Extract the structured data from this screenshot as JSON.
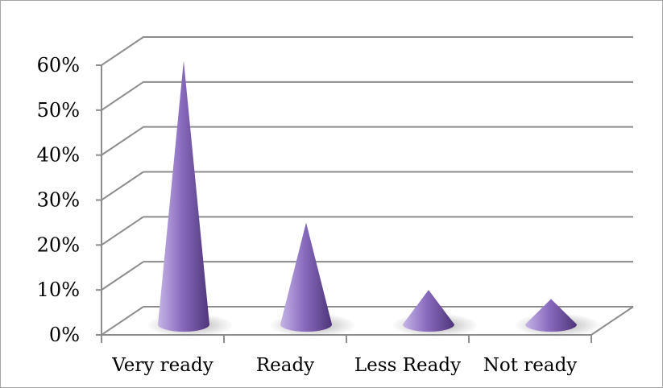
{
  "chart_data": {
    "type": "bar",
    "style": "3d-cone",
    "categories": [
      "Very ready",
      "Ready",
      "Less Ready",
      "Not ready"
    ],
    "values": [
      61,
      25,
      10,
      8
    ],
    "ylim": [
      0,
      60
    ],
    "yticks": [
      "0%",
      "10%",
      "20%",
      "30%",
      "40%",
      "50%",
      "60%"
    ],
    "grid": true,
    "legend": "none",
    "colors": {
      "bar_light": "#c6b5e6",
      "bar_mid": "#8a6cc0",
      "bar_dark": "#4e3579",
      "grid": "#8c8c8c",
      "axis": "#8c8c8c"
    }
  }
}
